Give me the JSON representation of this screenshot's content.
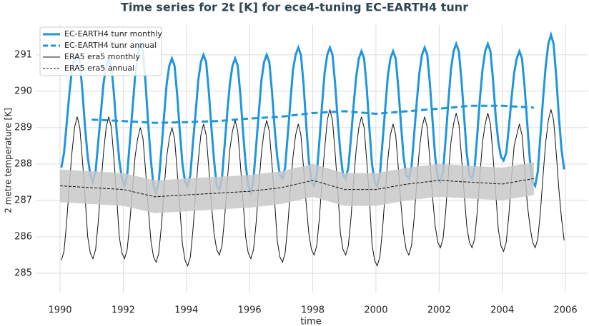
{
  "chart_data": {
    "type": "line",
    "title": "Time series for 2t [K] for ece4-tuning EC-EARTH4 tunr",
    "xlabel": "time",
    "ylabel": "2 metre temperature [K]",
    "xlim": [
      1989.23,
      2006.7
    ],
    "ylim": [
      284.47,
      291.82
    ],
    "xticks": [
      1990,
      1992,
      1994,
      1996,
      1998,
      2000,
      2002,
      2004,
      2006
    ],
    "yticks": [
      285,
      286,
      287,
      288,
      289,
      290,
      291
    ],
    "grid": true,
    "legend": "upper left",
    "x": [
      "1990-01",
      "1990-02",
      "1990-03",
      "1990-04",
      "1990-05",
      "1990-06",
      "1990-07",
      "1990-08",
      "1990-09",
      "1990-10",
      "1990-11",
      "1990-12",
      "1991-01",
      "1991-02",
      "1991-03",
      "1991-04",
      "1991-05",
      "1991-06",
      "1991-07",
      "1991-08",
      "1991-09",
      "1991-10",
      "1991-11",
      "1991-12",
      "1992-01",
      "1992-02",
      "1992-03",
      "1992-04",
      "1992-05",
      "1992-06",
      "1992-07",
      "1992-08",
      "1992-09",
      "1992-10",
      "1992-11",
      "1992-12",
      "1993-01",
      "1993-02",
      "1993-03",
      "1993-04",
      "1993-05",
      "1993-06",
      "1993-07",
      "1993-08",
      "1993-09",
      "1993-10",
      "1993-11",
      "1993-12",
      "1994-01",
      "1994-02",
      "1994-03",
      "1994-04",
      "1994-05",
      "1994-06",
      "1994-07",
      "1994-08",
      "1994-09",
      "1994-10",
      "1994-11",
      "1994-12",
      "1995-01",
      "1995-02",
      "1995-03",
      "1995-04",
      "1995-05",
      "1995-06",
      "1995-07",
      "1995-08",
      "1995-09",
      "1995-10",
      "1995-11",
      "1995-12",
      "1996-01",
      "1996-02",
      "1996-03",
      "1996-04",
      "1996-05",
      "1996-06",
      "1996-07",
      "1996-08",
      "1996-09",
      "1996-10",
      "1996-11",
      "1996-12",
      "1997-01",
      "1997-02",
      "1997-03",
      "1997-04",
      "1997-05",
      "1997-06",
      "1997-07",
      "1997-08",
      "1997-09",
      "1997-10",
      "1997-11",
      "1997-12",
      "1998-01",
      "1998-02",
      "1998-03",
      "1998-04",
      "1998-05",
      "1998-06",
      "1998-07",
      "1998-08",
      "1998-09",
      "1998-10",
      "1998-11",
      "1998-12",
      "1999-01",
      "1999-02",
      "1999-03",
      "1999-04",
      "1999-05",
      "1999-06",
      "1999-07",
      "1999-08",
      "1999-09",
      "1999-10",
      "1999-11",
      "1999-12",
      "2000-01",
      "2000-02",
      "2000-03",
      "2000-04",
      "2000-05",
      "2000-06",
      "2000-07",
      "2000-08",
      "2000-09",
      "2000-10",
      "2000-11",
      "2000-12",
      "2001-01",
      "2001-02",
      "2001-03",
      "2001-04",
      "2001-05",
      "2001-06",
      "2001-07",
      "2001-08",
      "2001-09",
      "2001-10",
      "2001-11",
      "2001-12",
      "2002-01",
      "2002-02",
      "2002-03",
      "2002-04",
      "2002-05",
      "2002-06",
      "2002-07",
      "2002-08",
      "2002-09",
      "2002-10",
      "2002-11",
      "2002-12",
      "2003-01",
      "2003-02",
      "2003-03",
      "2003-04",
      "2003-05",
      "2003-06",
      "2003-07",
      "2003-08",
      "2003-09",
      "2003-10",
      "2003-11",
      "2003-12",
      "2004-01",
      "2004-02",
      "2004-03",
      "2004-04",
      "2004-05",
      "2004-06",
      "2004-07",
      "2004-08",
      "2004-09",
      "2004-10",
      "2004-11",
      "2004-12",
      "2005-01",
      "2005-02",
      "2005-03",
      "2005-04",
      "2005-05",
      "2005-06",
      "2005-07",
      "2005-08",
      "2005-09",
      "2005-10",
      "2005-11",
      "2005-12"
    ],
    "series": [
      {
        "name": "EC-EARTH4 tunr monthly",
        "color": "#1f96dc",
        "dash": "solid",
        "linewidth": 3,
        "values": [
          287.9,
          288.3,
          289.1,
          289.9,
          290.6,
          290.9,
          291.0,
          290.8,
          290.0,
          289.0,
          288.2,
          287.7,
          287.5,
          287.8,
          288.6,
          289.4,
          290.2,
          290.7,
          290.9,
          290.7,
          289.9,
          288.9,
          288.1,
          287.6,
          287.4,
          287.7,
          288.6,
          289.5,
          290.4,
          291.0,
          291.3,
          291.1,
          290.2,
          289.1,
          288.1,
          287.4,
          287.2,
          287.5,
          288.4,
          289.3,
          290.2,
          290.7,
          290.9,
          290.7,
          289.9,
          288.9,
          288.0,
          287.5,
          287.4,
          287.7,
          288.6,
          289.4,
          290.3,
          290.8,
          291.0,
          290.8,
          290.0,
          289.0,
          288.1,
          287.4,
          287.3,
          287.6,
          288.5,
          289.4,
          290.2,
          290.7,
          290.9,
          290.7,
          289.9,
          288.9,
          288.0,
          287.4,
          287.2,
          287.6,
          288.5,
          289.4,
          290.3,
          290.8,
          291.0,
          290.8,
          290.0,
          289.0,
          288.2,
          287.7,
          287.6,
          287.9,
          288.8,
          289.7,
          290.6,
          291.0,
          291.2,
          291.0,
          290.2,
          289.1,
          288.1,
          287.5,
          287.4,
          287.7,
          288.6,
          289.6,
          290.5,
          291.0,
          291.2,
          291.0,
          290.2,
          289.2,
          288.3,
          287.7,
          287.6,
          287.9,
          288.7,
          289.6,
          290.4,
          290.9,
          291.1,
          290.9,
          290.1,
          289.0,
          288.0,
          287.5,
          287.4,
          287.7,
          288.6,
          289.5,
          290.4,
          290.9,
          291.1,
          290.9,
          290.1,
          289.1,
          288.2,
          287.7,
          287.6,
          287.9,
          288.8,
          289.7,
          290.5,
          291.0,
          291.2,
          291.0,
          290.2,
          289.2,
          288.2,
          287.6,
          287.5,
          287.8,
          288.7,
          289.7,
          290.6,
          291.1,
          291.3,
          291.1,
          290.3,
          289.3,
          288.3,
          287.7,
          287.6,
          287.9,
          288.8,
          289.8,
          290.6,
          291.1,
          291.3,
          291.1,
          290.3,
          289.3,
          288.6,
          288.2,
          288.1,
          288.3,
          289.0,
          289.8,
          290.5,
          290.9,
          291.1,
          290.9,
          290.1,
          289.1,
          288.1,
          287.5,
          287.4,
          287.8,
          288.8,
          289.8,
          290.7,
          291.3,
          291.55,
          291.3,
          290.4,
          289.3,
          288.4,
          287.85
        ]
      },
      {
        "name": "EC-EARTH4 tunr annual",
        "color": "#1f96dc",
        "dash": "dashed",
        "linewidth": 3,
        "x": [
          1991,
          1992,
          1993,
          1994,
          1995,
          1996,
          1997,
          1998,
          1999,
          2000,
          2001,
          2002,
          2003,
          2004,
          2005
        ],
        "values": [
          289.22,
          289.18,
          289.13,
          289.15,
          289.18,
          289.25,
          289.3,
          289.4,
          289.45,
          289.38,
          289.45,
          289.52,
          289.6,
          289.6,
          289.55
        ]
      },
      {
        "name": "ERA5 era5 monthly",
        "color": "#111111",
        "dash": "solid",
        "linewidth": 1,
        "values": [
          285.35,
          285.6,
          286.4,
          287.4,
          288.3,
          289.0,
          289.3,
          289.0,
          288.1,
          287.1,
          286.0,
          285.55,
          285.4,
          285.65,
          286.4,
          287.4,
          288.3,
          289.0,
          289.3,
          289.0,
          288.1,
          287.1,
          286.0,
          285.55,
          285.4,
          285.65,
          286.4,
          287.3,
          288.2,
          288.7,
          289.0,
          288.7,
          287.8,
          286.8,
          285.9,
          285.45,
          285.3,
          285.55,
          286.3,
          287.3,
          288.2,
          288.7,
          289.0,
          288.7,
          287.8,
          286.8,
          285.8,
          285.35,
          285.2,
          285.45,
          286.2,
          287.2,
          288.1,
          288.8,
          289.1,
          288.8,
          287.9,
          286.9,
          286.1,
          285.65,
          285.5,
          285.75,
          286.5,
          287.5,
          288.4,
          288.9,
          289.2,
          288.9,
          288.0,
          287.0,
          286.0,
          285.55,
          285.4,
          285.65,
          286.4,
          287.4,
          288.3,
          288.9,
          289.2,
          288.9,
          288.0,
          287.0,
          285.9,
          285.45,
          285.3,
          285.55,
          286.3,
          287.3,
          288.2,
          288.8,
          289.1,
          288.8,
          287.9,
          286.9,
          286.1,
          285.65,
          285.5,
          285.75,
          286.5,
          287.5,
          288.4,
          289.2,
          289.5,
          289.2,
          288.3,
          287.3,
          286.1,
          285.65,
          285.5,
          285.75,
          286.5,
          287.5,
          288.4,
          289.0,
          289.3,
          289.0,
          288.1,
          287.1,
          285.8,
          285.35,
          285.2,
          285.45,
          286.2,
          287.2,
          288.1,
          288.8,
          289.1,
          288.8,
          287.9,
          286.9,
          286.1,
          285.65,
          285.5,
          285.75,
          286.5,
          287.5,
          288.4,
          289.0,
          289.3,
          289.0,
          288.1,
          287.1,
          286.3,
          285.85,
          285.7,
          285.95,
          286.7,
          287.7,
          288.6,
          289.1,
          289.4,
          289.1,
          288.2,
          287.2,
          286.3,
          285.85,
          285.7,
          285.95,
          286.7,
          287.7,
          288.6,
          289.1,
          289.4,
          289.1,
          288.2,
          287.2,
          286.2,
          285.75,
          285.6,
          285.85,
          286.6,
          287.6,
          288.5,
          288.8,
          289.1,
          288.8,
          287.9,
          286.9,
          286.3,
          285.85,
          285.7,
          285.95,
          286.7,
          287.7,
          288.6,
          289.2,
          289.5,
          289.2,
          288.3,
          287.3,
          286.5,
          285.9
        ]
      },
      {
        "name": "ERA5 era5 annual",
        "color": "#111111",
        "dash": "dashed",
        "linewidth": 1,
        "x": [
          1990,
          1991,
          1992,
          1993,
          1994,
          1995,
          1996,
          1997,
          1998,
          1999,
          2000,
          2001,
          2002,
          2003,
          2004,
          2005
        ],
        "values": [
          287.4,
          287.35,
          287.3,
          287.1,
          287.15,
          287.2,
          287.25,
          287.35,
          287.55,
          287.3,
          287.3,
          287.45,
          287.55,
          287.5,
          287.45,
          287.6
        ],
        "band_lower": [
          286.95,
          286.9,
          286.85,
          286.65,
          286.7,
          286.75,
          286.8,
          286.9,
          287.1,
          286.85,
          286.85,
          287.0,
          287.1,
          287.05,
          287.0,
          287.15
        ],
        "band_upper": [
          287.85,
          287.8,
          287.75,
          287.55,
          287.6,
          287.65,
          287.7,
          287.8,
          288.0,
          287.75,
          287.75,
          287.9,
          288.0,
          287.95,
          287.9,
          288.05
        ],
        "band_color": "#c8c8c8"
      }
    ]
  }
}
